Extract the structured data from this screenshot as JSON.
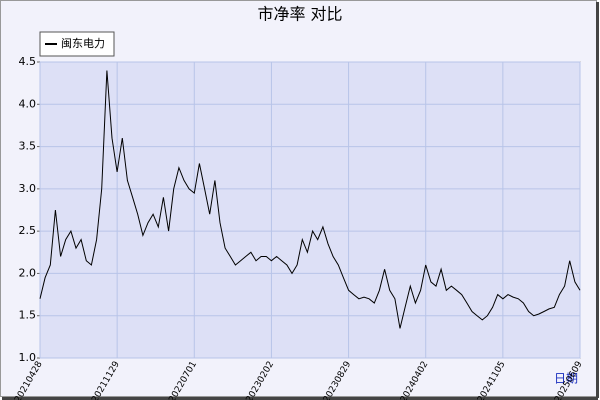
{
  "chart_data": {
    "type": "line",
    "title": "市净率  对比",
    "x_label": "日期",
    "categories": [
      "20210428",
      null,
      null,
      null,
      null,
      null,
      null,
      null,
      null,
      null,
      null,
      null,
      null,
      null,
      null,
      "20211129",
      null,
      null,
      null,
      null,
      null,
      null,
      null,
      null,
      null,
      null,
      null,
      null,
      null,
      null,
      "20220701",
      null,
      null,
      null,
      null,
      null,
      null,
      null,
      null,
      null,
      null,
      null,
      null,
      null,
      null,
      "20230202",
      null,
      null,
      null,
      null,
      null,
      null,
      null,
      null,
      null,
      null,
      null,
      null,
      null,
      null,
      "20230829",
      null,
      null,
      null,
      null,
      null,
      null,
      null,
      null,
      null,
      null,
      null,
      null,
      null,
      null,
      "20240402",
      null,
      null,
      null,
      null,
      null,
      null,
      null,
      null,
      null,
      null,
      null,
      null,
      null,
      null,
      "20241105",
      null,
      null,
      null,
      null,
      null,
      null,
      null,
      null,
      null,
      null,
      null,
      null,
      null,
      null,
      "20250609"
    ],
    "series": [
      {
        "name": "闽东电力",
        "color": "#000000",
        "values": [
          1.7,
          1.95,
          2.1,
          2.75,
          2.2,
          2.4,
          2.5,
          2.3,
          2.4,
          2.15,
          2.1,
          2.4,
          3.0,
          4.4,
          3.6,
          3.2,
          3.6,
          3.1,
          2.9,
          2.7,
          2.45,
          2.6,
          2.7,
          2.55,
          2.9,
          2.5,
          3.0,
          3.25,
          3.1,
          3.0,
          2.95,
          3.3,
          3.0,
          2.7,
          3.1,
          2.6,
          2.3,
          2.2,
          2.1,
          2.15,
          2.2,
          2.25,
          2.15,
          2.2,
          2.2,
          2.15,
          2.2,
          2.15,
          2.1,
          2.0,
          2.1,
          2.4,
          2.25,
          2.5,
          2.4,
          2.55,
          2.35,
          2.2,
          2.1,
          1.95,
          1.8,
          1.75,
          1.7,
          1.72,
          1.7,
          1.65,
          1.8,
          2.05,
          1.8,
          1.7,
          1.35,
          1.6,
          1.85,
          1.65,
          1.8,
          2.1,
          1.9,
          1.85,
          2.05,
          1.8,
          1.85,
          1.8,
          1.75,
          1.65,
          1.55,
          1.5,
          1.45,
          1.5,
          1.6,
          1.75,
          1.7,
          1.75,
          1.72,
          1.7,
          1.65,
          1.55,
          1.5,
          1.52,
          1.55,
          1.58,
          1.6,
          1.75,
          1.85,
          2.15,
          1.9,
          1.8
        ]
      }
    ],
    "ylim": [
      1,
      4.5
    ],
    "yticks": [
      {
        "value": 1,
        "label": "1.0"
      },
      1.5,
      {
        "value": 2,
        "label": "2.0"
      },
      2.5,
      {
        "value": 3,
        "label": "3.0"
      },
      3.5,
      {
        "value": 4,
        "label": "4.0"
      },
      4.5
    ],
    "grid": true,
    "legend": "top-left"
  }
}
